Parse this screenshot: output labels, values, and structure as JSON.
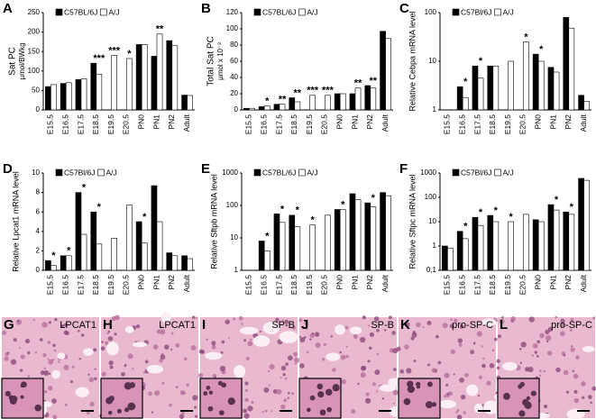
{
  "chart_data": [
    {
      "type": "bar",
      "panel": "A",
      "ylabel": "Sat PC",
      "ylabel2": "µmol/BWkg",
      "categories": [
        "E15.5",
        "E16.5",
        "E17.5",
        "E18.5",
        "E19.5",
        "E20.5",
        "PN0",
        "PN1",
        "PN2",
        "Adult"
      ],
      "series": [
        {
          "name": "C57BL/6J",
          "color": "#000000",
          "values": [
            60,
            68,
            78,
            120,
            null,
            null,
            168,
            138,
            178,
            38
          ]
        },
        {
          "name": "A/J",
          "color": "#ffffff",
          "values": [
            65,
            70,
            80,
            92,
            140,
            132,
            168,
            195,
            165,
            37
          ]
        }
      ],
      "significance": [
        null,
        null,
        null,
        "***",
        "***",
        "*",
        null,
        "**",
        null,
        null
      ],
      "ylim": [
        0,
        250
      ],
      "yticks": [
        0,
        50,
        100,
        150,
        200,
        250
      ],
      "log_scale": false
    },
    {
      "type": "bar",
      "panel": "B",
      "ylabel": "Total Sat PC",
      "ylabel2": "µmol x 10⁻²",
      "categories": [
        "E15.5",
        "E16.5",
        "E17.5",
        "E18.5",
        "E19.5",
        "E20.5",
        "PN0",
        "PN1",
        "PN2",
        "Adult"
      ],
      "series": [
        {
          "name": "C57BL/6J",
          "color": "#000000",
          "values": [
            2,
            4,
            7,
            15,
            null,
            null,
            20,
            20,
            30,
            97
          ]
        },
        {
          "name": "A/J",
          "color": "#ffffff",
          "values": [
            2,
            5,
            7,
            10,
            18,
            18,
            20,
            27,
            27,
            88
          ]
        }
      ],
      "significance": [
        null,
        "*",
        "**",
        "**",
        "***",
        "***",
        null,
        "**",
        "**",
        null
      ],
      "ylim": [
        0,
        120
      ],
      "yticks": [
        0,
        20,
        40,
        60,
        80,
        100,
        120
      ],
      "log_scale": false
    },
    {
      "type": "bar",
      "panel": "C",
      "ylabel": "Relative Cebpa mRNA level",
      "categories": [
        "E15.5",
        "E16.5",
        "E17.5",
        "E18.5",
        "E19.5",
        "E20.5",
        "PN0",
        "PN1",
        "PN2",
        "Adult"
      ],
      "series": [
        {
          "name": "C57Bl/6J",
          "color": "#000000",
          "values": [
            1,
            3,
            8,
            8,
            null,
            null,
            14,
            7.5,
            80,
            2
          ]
        },
        {
          "name": "A/J",
          "color": "#ffffff",
          "values": [
            1,
            1.8,
            4.5,
            8,
            10,
            25,
            10,
            6,
            48,
            1.5
          ]
        }
      ],
      "significance": [
        null,
        "*",
        "*",
        null,
        null,
        "*",
        "*",
        null,
        null,
        null
      ],
      "ylim": [
        1,
        100
      ],
      "yticks": [
        1,
        10,
        100
      ],
      "log_scale": true
    },
    {
      "type": "bar",
      "panel": "D",
      "ylabel": "Relative Lpcat1 mRNA level",
      "categories": [
        "E15.5",
        "E16.5",
        "E17.5",
        "E18.5",
        "E19.5",
        "E20.5",
        "PN0",
        "PN1",
        "PN2",
        "Adult"
      ],
      "series": [
        {
          "name": "C57Bl/6J",
          "color": "#000000",
          "values": [
            1,
            1.5,
            8,
            6,
            null,
            null,
            5,
            8.7,
            1.8,
            1.5
          ]
        },
        {
          "name": "A/J",
          "color": "#ffffff",
          "values": [
            0.5,
            1.5,
            3.7,
            2.7,
            3.3,
            6.7,
            2.8,
            5,
            1.5,
            1.2
          ]
        }
      ],
      "significance": [
        "*",
        "*",
        "*",
        "*",
        null,
        null,
        "*",
        null,
        null,
        null
      ],
      "ylim": [
        0,
        10
      ],
      "yticks": [
        0,
        2,
        4,
        6,
        8,
        10
      ],
      "log_scale": false
    },
    {
      "type": "bar",
      "panel": "E",
      "ylabel": "Relative Sftpb mRNA level",
      "categories": [
        "E15.5",
        "E16.5",
        "E17.5",
        "E18.5",
        "E19.5",
        "E20.5",
        "PN0",
        "PN1",
        "PN2",
        "Adult"
      ],
      "series": [
        {
          "name": "C57BL/6J",
          "color": "#000000",
          "values": [
            1,
            8,
            55,
            50,
            null,
            null,
            75,
            230,
            120,
            250
          ]
        },
        {
          "name": "A/J",
          "color": "#ffffff",
          "values": [
            1,
            4,
            30,
            22,
            25,
            50,
            75,
            150,
            90,
            200
          ]
        }
      ],
      "significance": [
        null,
        "*",
        "*",
        "*",
        "*",
        null,
        "*",
        null,
        "*",
        null
      ],
      "ylim": [
        1,
        1000
      ],
      "yticks": [
        1,
        10,
        100,
        1000
      ],
      "log_scale": true
    },
    {
      "type": "bar",
      "panel": "F",
      "ylabel": "Relative Sftpc mRNA level",
      "categories": [
        "E15.5",
        "E16.5",
        "E17.5",
        "E18.5",
        "E19.5",
        "E20.5",
        "PN0",
        "PN1",
        "PN2",
        "Adult"
      ],
      "series": [
        {
          "name": "C57Bl/6J",
          "color": "#000000",
          "values": [
            1,
            4,
            15,
            18,
            null,
            null,
            12,
            50,
            25,
            600
          ]
        },
        {
          "name": "A/J",
          "color": "#ffffff",
          "values": [
            0.8,
            2,
            7,
            10,
            10,
            20,
            10,
            30,
            20,
            500
          ]
        }
      ],
      "significance": [
        null,
        "*",
        "*",
        "*",
        "*",
        null,
        null,
        "*",
        "*",
        null
      ],
      "ylim": [
        0.1,
        1000
      ],
      "yticks": [
        {
          "value": 0.1,
          "label": "0,1"
        },
        1,
        10,
        100,
        1000
      ],
      "log_scale": true
    }
  ],
  "images": [
    {
      "panel": "G",
      "label": "LPCAT1"
    },
    {
      "panel": "H",
      "label": "LPCAT1"
    },
    {
      "panel": "I",
      "label": "SP-B"
    },
    {
      "panel": "J",
      "label": "SP-B"
    },
    {
      "panel": "K",
      "label": "pro-SP-C"
    },
    {
      "panel": "L",
      "label": "pro-SP-C"
    }
  ]
}
